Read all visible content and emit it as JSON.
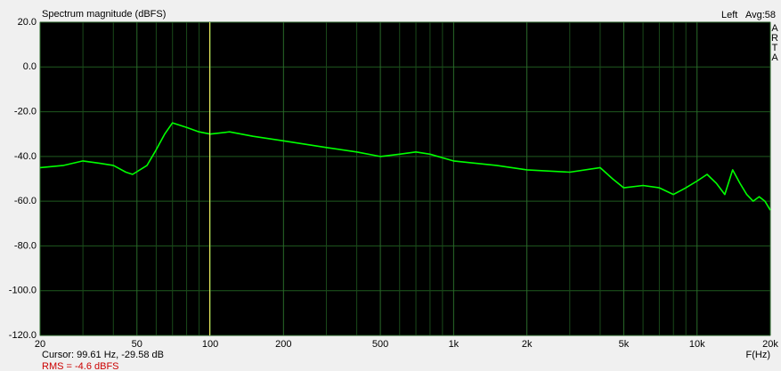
{
  "chart_data": {
    "type": "line",
    "title": "Spectrum magnitude (dBFS)",
    "channel": "Left",
    "average": "Avg:58",
    "side_label": [
      "A",
      "R",
      "T",
      "A"
    ],
    "x_label": "F(Hz)",
    "log_x": true,
    "grid": true,
    "color": "#00ff00",
    "cursor_color": "#ffff66",
    "xlim": [
      20,
      20000
    ],
    "ylim": [
      -120,
      20
    ],
    "xticks": [
      20,
      50,
      100,
      200,
      500,
      {
        "value": 1000,
        "label": "1k"
      },
      {
        "value": 2000,
        "label": "2k"
      },
      {
        "value": 5000,
        "label": "5k"
      },
      {
        "value": 10000,
        "label": "10k"
      },
      {
        "value": 20000,
        "label": "20k"
      }
    ],
    "xminorticks": [
      30,
      40,
      60,
      70,
      80,
      90,
      300,
      400,
      600,
      700,
      800,
      900,
      3000,
      4000,
      6000,
      7000,
      8000,
      9000
    ],
    "yticks": [
      {
        "value": 20,
        "label": "20.0"
      },
      {
        "value": 0,
        "label": "0.0"
      },
      {
        "value": -20,
        "label": "-20.0"
      },
      {
        "value": -40,
        "label": "-40.0"
      },
      {
        "value": -60,
        "label": "-60.0"
      },
      {
        "value": -80,
        "label": "-80.0"
      },
      {
        "value": -100,
        "label": "-100.0"
      },
      {
        "value": -120,
        "label": "-120.0"
      }
    ],
    "cursor": {
      "x": 99.61,
      "label": "Cursor: 99.61 Hz, -29.58 dB"
    },
    "rms_label": "RMS =  -4.6 dBFS",
    "x": [
      20,
      25,
      30,
      35,
      40,
      45,
      48,
      55,
      60,
      65,
      70,
      80,
      90,
      100,
      120,
      150,
      200,
      300,
      400,
      500,
      600,
      700,
      800,
      1000,
      1500,
      2000,
      3000,
      4000,
      4500,
      5000,
      6000,
      7000,
      8000,
      9000,
      10000,
      11000,
      12000,
      13000,
      14000,
      15000,
      16000,
      17000,
      18000,
      19000,
      20000
    ],
    "series": [
      {
        "values": [
          -45,
          -44,
          -42,
          -43,
          -44,
          -47,
          -48,
          -44,
          -37,
          -30,
          -25,
          -27,
          -29,
          -30,
          -29,
          -31,
          -33,
          -36,
          -38,
          -40,
          -39,
          -38,
          -39,
          -42,
          -44,
          -46,
          -47,
          -45,
          -50,
          -54,
          -53,
          -54,
          -57,
          -54,
          -51,
          -48,
          -52,
          -57,
          -46,
          -52,
          -57,
          -60,
          -58,
          -60,
          -64
        ]
      }
    ]
  }
}
